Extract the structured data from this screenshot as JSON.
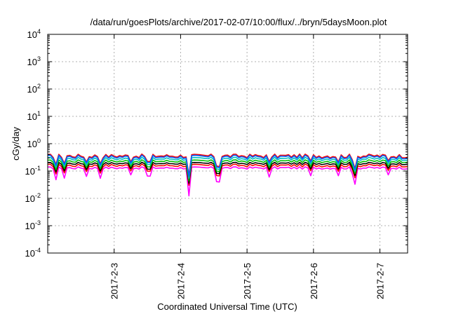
{
  "chart_data": {
    "type": "line",
    "title": "/data/run/goesPlots/archive/2017-02-07/10:00/flux/../bryn/5daysMoon.plot",
    "xlabel": "Coordinated Universal Time (UTC)",
    "ylabel": "cGy/day",
    "y_scale": "log",
    "ylim": [
      0.0001,
      10000
    ],
    "y_ticks": [
      {
        "value": 0.0001,
        "base": "10",
        "exp": "-4"
      },
      {
        "value": 0.001,
        "base": "10",
        "exp": "-3"
      },
      {
        "value": 0.01,
        "base": "10",
        "exp": "-2"
      },
      {
        "value": 0.1,
        "base": "10",
        "exp": "-1"
      },
      {
        "value": 1,
        "base": "10",
        "exp": "0"
      },
      {
        "value": 10,
        "base": "10",
        "exp": "1"
      },
      {
        "value": 100,
        "base": "10",
        "exp": "2"
      },
      {
        "value": 1000,
        "base": "10",
        "exp": "3"
      },
      {
        "value": 10000,
        "base": "10",
        "exp": "4"
      }
    ],
    "xlim": [
      "2017-02-02 00:00",
      "2017-02-07 10:00"
    ],
    "x_ticks": [
      {
        "value": "2017-02-03 00:00",
        "label": "2017-2-3"
      },
      {
        "value": "2017-02-04 00:00",
        "label": "2017-2-4"
      },
      {
        "value": "2017-02-05 00:00",
        "label": "2017-2-5"
      },
      {
        "value": "2017-02-06 00:00",
        "label": "2017-2-6"
      },
      {
        "value": "2017-02-07 00:00",
        "label": "2017-2-7"
      }
    ],
    "grid": true,
    "legend": "none",
    "sample_step_hours": 1,
    "dips": [
      {
        "time": "2017-02-02 03:00",
        "factor": 0.5
      },
      {
        "time": "2017-02-02 06:00",
        "factor": 0.55
      },
      {
        "time": "2017-02-02 14:00",
        "factor": 0.6
      },
      {
        "time": "2017-02-02 19:00",
        "factor": 0.55
      },
      {
        "time": "2017-02-03 06:00",
        "factor": 0.7
      },
      {
        "time": "2017-02-03 12:00",
        "factor": 0.6
      },
      {
        "time": "2017-02-03 13:00",
        "factor": 0.6
      },
      {
        "time": "2017-02-04 03:00",
        "factor": 0.18
      },
      {
        "time": "2017-02-04 13:00",
        "factor": 0.45
      },
      {
        "time": "2017-02-04 14:00",
        "factor": 0.45
      },
      {
        "time": "2017-02-05 08:00",
        "factor": 0.55
      },
      {
        "time": "2017-02-05 23:00",
        "factor": 0.6
      },
      {
        "time": "2017-02-06 09:00",
        "factor": 0.65
      },
      {
        "time": "2017-02-06 14:00",
        "factor": 0.7
      },
      {
        "time": "2017-02-06 15:00",
        "factor": 0.4
      },
      {
        "time": "2017-02-07 03:00",
        "factor": 0.65
      }
    ],
    "series": [
      {
        "color": "#ff00ff",
        "level": 0.13,
        "amp": 0.1
      },
      {
        "color": "#ff0000",
        "level": 0.16,
        "amp": 0.12
      },
      {
        "color": "#000000",
        "level": 0.19,
        "amp": 0.1
      },
      {
        "color": "#00c000",
        "level": 0.23,
        "amp": 0.12
      },
      {
        "color": "#00c0c0",
        "level": 0.28,
        "amp": 0.14
      },
      {
        "color": "#ff0000",
        "level": 0.36,
        "amp": 0.16
      },
      {
        "color": "#0060ff",
        "level": 0.33,
        "amp": 0.16
      }
    ]
  }
}
